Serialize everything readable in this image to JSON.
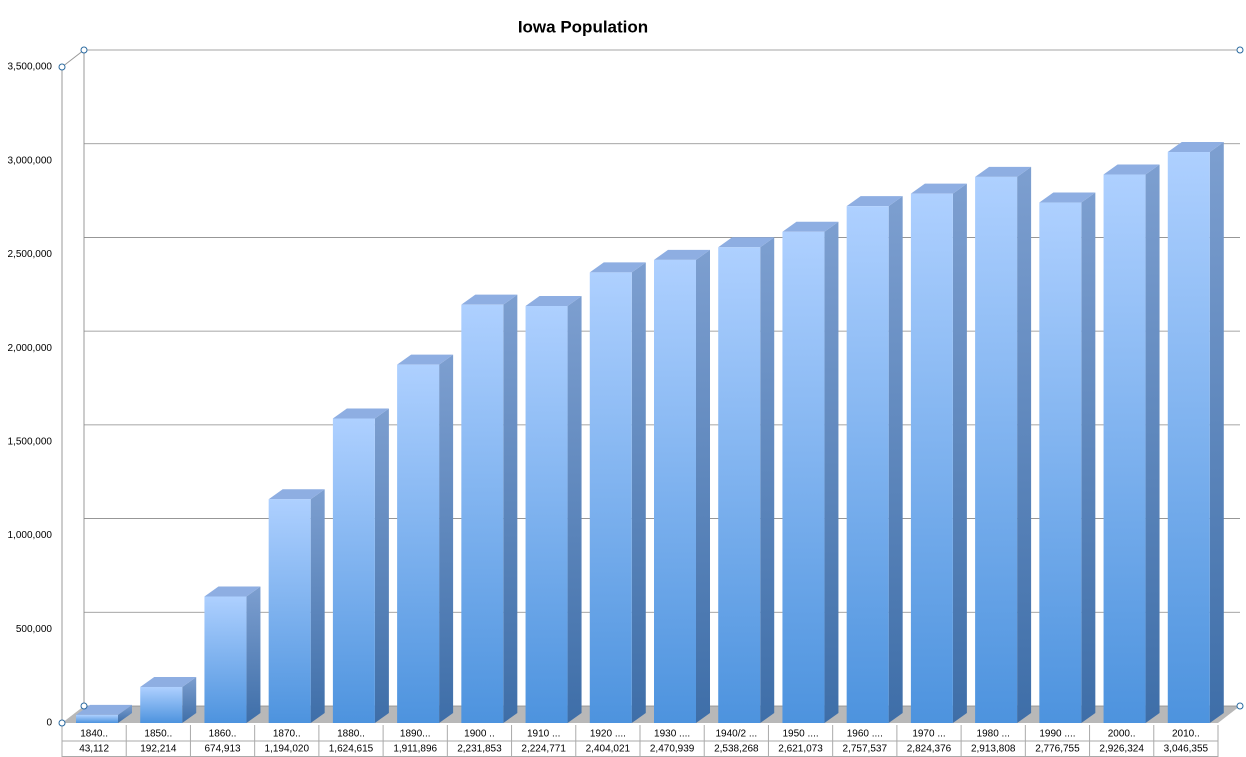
{
  "chart_data": {
    "type": "bar3d",
    "title": "Iowa Population",
    "categories": [
      "1840..",
      "1850..",
      "1860..",
      "1870..",
      "1880..",
      "1890...",
      "1900 ..",
      "1910 ...",
      "1920 ....",
      "1930 ....",
      "1940/2 ...",
      "1950 ....",
      "1960 ....",
      "1970 ...",
      "1980 ...",
      "1990 ....",
      "2000..",
      "2010.."
    ],
    "values": [
      43112,
      192214,
      674913,
      1194020,
      1624615,
      1911896,
      2231853,
      2224771,
      2404021,
      2470939,
      2538268,
      2621073,
      2757537,
      2824376,
      2913808,
      2776755,
      2926324,
      3046355
    ],
    "value_labels": [
      "43,112",
      "192,214",
      "674,913",
      "1,194,020",
      "1,624,615",
      "1,911,896",
      "2,231,853",
      "2,224,771",
      "2,404,021",
      "2,470,939",
      "2,538,268",
      "2,621,073",
      "2,757,537",
      "2,824,376",
      "2,913,808",
      "2,776,755",
      "2,926,324",
      "3,046,355"
    ],
    "color": "#5b9be6",
    "ylim": [
      0,
      3500000
    ],
    "yticks": [
      0,
      {
        "value": 500000,
        "label": "500,000"
      },
      {
        "value": 1000000,
        "label": "1,000,000"
      },
      {
        "value": 1500000,
        "label": "1,500,000"
      },
      {
        "value": 2000000,
        "label": "2,000,000"
      },
      {
        "value": 2500000,
        "label": "2,500,000"
      },
      {
        "value": 3000000,
        "label": "3,000,000"
      },
      {
        "value": 3500000,
        "label": "3,500,000"
      }
    ],
    "grid": true
  }
}
